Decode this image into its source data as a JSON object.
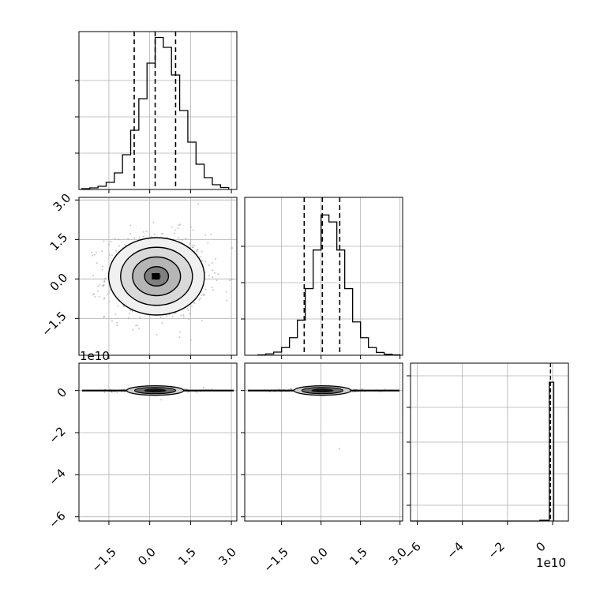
{
  "chart_data": [
    {
      "panel": "hist-param-1",
      "type": "histogram",
      "xlim": [
        -2.6,
        3.2
      ],
      "bins": [
        -2.5,
        -2.2,
        -1.9,
        -1.6,
        -1.3,
        -1.0,
        -0.7,
        -0.4,
        -0.1,
        0.2,
        0.5,
        0.8,
        1.1,
        1.4,
        1.7,
        2.0,
        2.3,
        2.6
      ],
      "counts": [
        2,
        4,
        8,
        18,
        42,
        88,
        150,
        230,
        320,
        385,
        360,
        290,
        200,
        120,
        64,
        30,
        12,
        5
      ],
      "ylim": [
        0,
        400
      ],
      "quantiles": [
        -0.57,
        0.2,
        0.95
      ],
      "grid": true
    },
    {
      "panel": "hist-param-2",
      "type": "histogram",
      "xlim": [
        -2.9,
        3.1
      ],
      "bins": [
        -2.4,
        -2.1,
        -1.8,
        -1.5,
        -1.2,
        -0.9,
        -0.6,
        -0.3,
        0.0,
        0.3,
        0.6,
        0.9,
        1.2,
        1.5,
        1.8,
        2.1,
        2.4,
        2.7
      ],
      "counts": [
        1,
        4,
        9,
        22,
        50,
        100,
        190,
        300,
        400,
        380,
        300,
        190,
        95,
        50,
        22,
        8,
        3,
        1
      ],
      "ylim": [
        0,
        450
      ],
      "quantiles": [
        -0.64,
        0.05,
        0.71
      ],
      "grid": true
    },
    {
      "panel": "hist-param-3",
      "type": "histogram",
      "xlim": [
        -6.3,
        0.7
      ],
      "x_offset_label": "1e10",
      "bins": [
        -0.15,
        0.0
      ],
      "counts": [
        2990,
        10
      ],
      "ylim": [
        0,
        3400
      ],
      "quantiles": [
        0.01
      ],
      "grid": true
    },
    {
      "panel": "2d-param-1-vs-param-2",
      "type": "heatmap",
      "xlim": [
        -2.6,
        3.2
      ],
      "ylim": [
        -2.9,
        3.1
      ],
      "center": [
        0.25,
        0.1
      ],
      "sigma": [
        0.88,
        0.7
      ],
      "contour_levels_sigma": [
        0.5,
        1.0,
        1.5,
        2.0
      ],
      "grid": true
    },
    {
      "panel": "2d-param-1-vs-param-3",
      "type": "scatter",
      "xlim": [
        -2.6,
        3.2
      ],
      "ylim": [
        -6.2,
        1.3
      ],
      "y_offset_label": "1e10",
      "center": [
        0.2,
        0.05
      ],
      "grid": true
    },
    {
      "panel": "2d-param-2-vs-param-3",
      "type": "scatter",
      "xlim": [
        -2.9,
        3.1
      ],
      "ylim": [
        -6.2,
        1.3
      ],
      "center": [
        0.05,
        0.05
      ],
      "grid": true
    }
  ],
  "axes": {
    "x_ticks_param1": [
      "−1.5",
      "0.0",
      "1.5",
      "3.0"
    ],
    "x_ticks_param2": [
      "−1.5",
      "0.0",
      "1.5",
      "3.0"
    ],
    "x_ticks_param3": [
      "−6",
      "−4",
      "−2",
      "0"
    ],
    "y_ticks_param2": [
      "3.0",
      "1.5",
      "0.0",
      "−1.5"
    ],
    "y_ticks_param3": [
      "0",
      "−2",
      "−4",
      "−6"
    ],
    "offset_left": "1e10",
    "offset_bottom": "1e10"
  }
}
